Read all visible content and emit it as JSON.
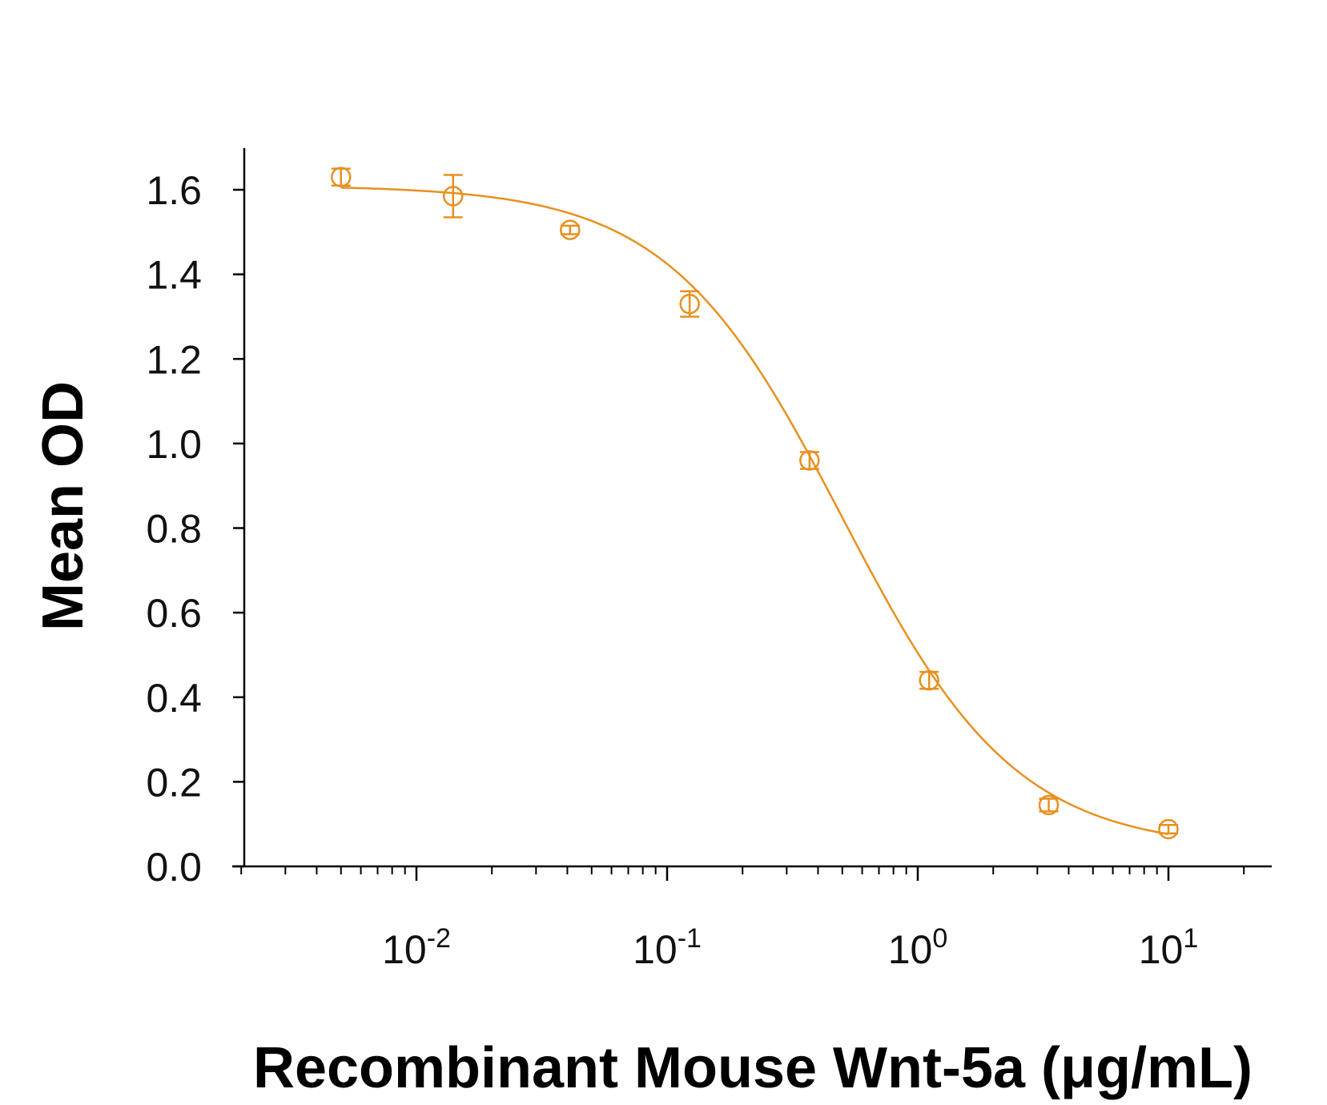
{
  "chart_data": {
    "type": "scatter",
    "title": "",
    "xlabel": "Recombinant Mouse Wnt-5a (μg/mL)",
    "ylabel": "Mean OD",
    "x_scale": "log",
    "xlim": [
      0.002,
      25
    ],
    "ylim": [
      0.0,
      1.7
    ],
    "grid": false,
    "legend": "none",
    "colors": {
      "series": "#E8901E",
      "axis": "#000000"
    },
    "y_ticks": [
      {
        "value": 0.0,
        "label": "0.0"
      },
      {
        "value": 0.2,
        "label": "0.2"
      },
      {
        "value": 0.4,
        "label": "0.4"
      },
      {
        "value": 0.6,
        "label": "0.6"
      },
      {
        "value": 0.8,
        "label": "0.8"
      },
      {
        "value": 1.0,
        "label": "1.0"
      },
      {
        "value": 1.2,
        "label": "1.2"
      },
      {
        "value": 1.4,
        "label": "1.4"
      },
      {
        "value": 1.6,
        "label": "1.6"
      }
    ],
    "x_ticks": [
      {
        "value": 0.01,
        "base": "10",
        "exp": "-2"
      },
      {
        "value": 0.1,
        "base": "10",
        "exp": "-1"
      },
      {
        "value": 1,
        "base": "10",
        "exp": "0"
      },
      {
        "value": 10,
        "base": "10",
        "exp": "1"
      }
    ],
    "series": [
      {
        "x": [
          0.005,
          0.014,
          0.041,
          0.123,
          0.37,
          1.11,
          3.33,
          10
        ],
        "y": [
          1.63,
          1.585,
          1.505,
          1.33,
          0.96,
          0.44,
          0.145,
          0.088
        ],
        "error": [
          0.02,
          0.05,
          0.01,
          0.03,
          0.02,
          0.02,
          0.015,
          0.01
        ]
      }
    ],
    "fit": {
      "type": "4PL",
      "bottom": 0.04,
      "top": 1.61,
      "ec50": 0.5,
      "hill": 1.25,
      "x_range": [
        0.005,
        10
      ]
    }
  }
}
